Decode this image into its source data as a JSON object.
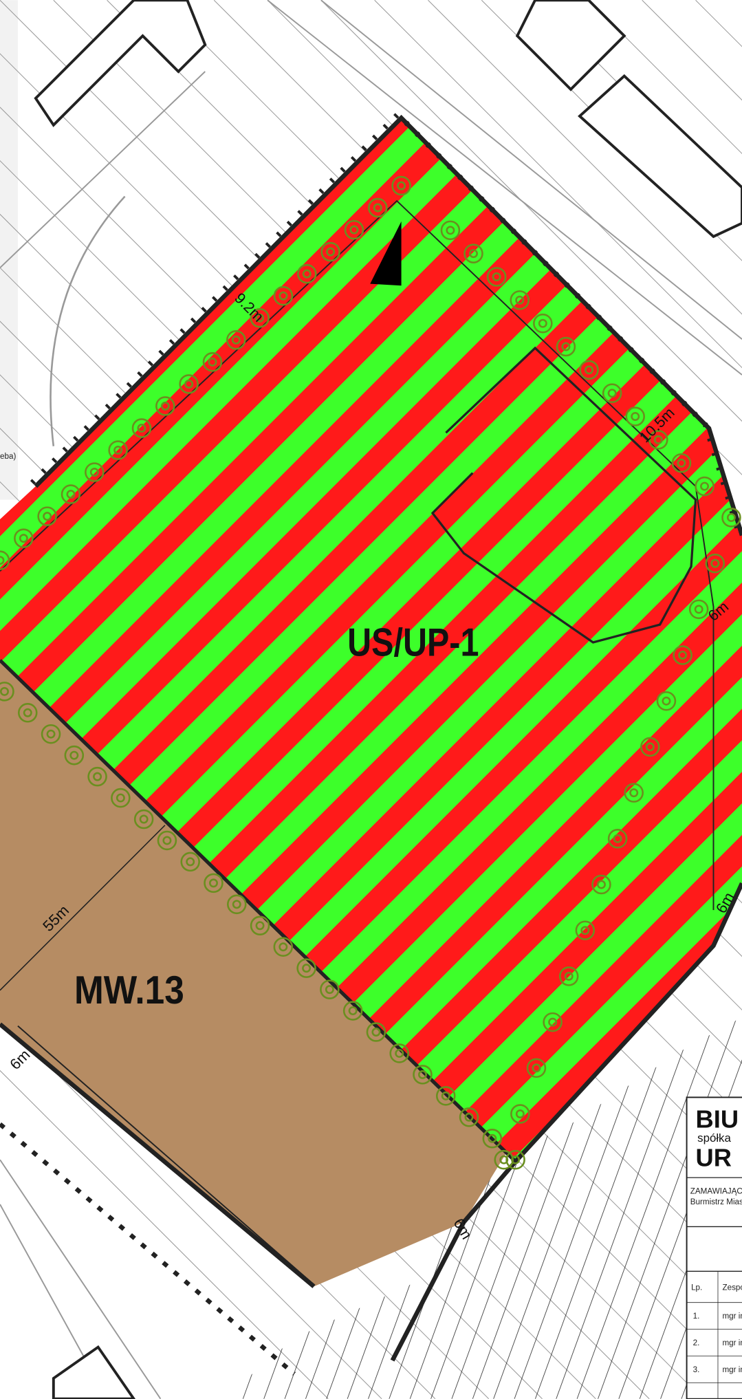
{
  "zones": [
    {
      "label": "US/UP-1"
    },
    {
      "label": "MW.13"
    }
  ],
  "dimensions": [
    "9.2m",
    "10.5m",
    "6m",
    "6m",
    "55m",
    "6m",
    "6m"
  ],
  "legend_fragment": "eba)",
  "title_block": {
    "logo": [
      "BIU",
      "spółka",
      "UR"
    ],
    "client": [
      "ZAMAWIAJĄC",
      "Burmistrz Mias"
    ],
    "table": {
      "header": [
        "Lp.",
        "Zespó"
      ],
      "rows": [
        [
          "1.",
          "mgr in"
        ],
        [
          "2.",
          "mgr in"
        ],
        [
          "3.",
          "mgr in"
        ]
      ]
    }
  }
}
